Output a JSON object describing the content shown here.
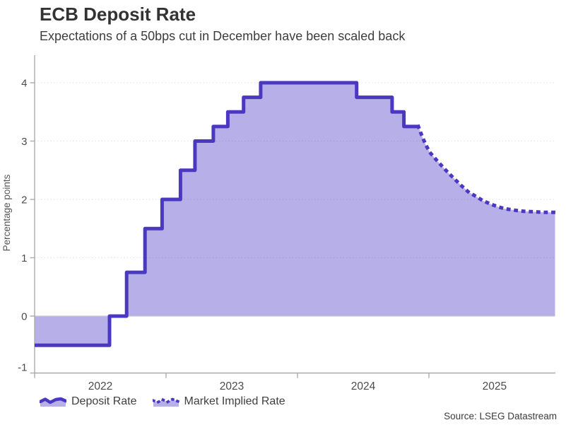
{
  "header": {
    "title": "ECB Deposit Rate",
    "subtitle": "Expectations of a 50bps cut in December have been scaled back"
  },
  "legend": {
    "items": [
      {
        "label": "Deposit Rate",
        "style": "solid"
      },
      {
        "label": "Market Implied Rate",
        "style": "dotted"
      }
    ]
  },
  "source": "Source: LSEG Datastream",
  "colors": {
    "line": "#4A38C0",
    "fill": "rgba(74,56,194,0.40)",
    "fill_flat": "#B7AFE7",
    "axis": "#ABABAB",
    "grid": "#E2E2E2",
    "zero_line": "#C8C8C8",
    "tick_text": "#4B4B4B",
    "ylabel_text": "#565656"
  },
  "chart_data": {
    "type": "area",
    "title": "ECB Deposit Rate",
    "subtitle": "Expectations of a 50bps cut in December have been scaled back",
    "ylabel": "Percentage points",
    "xlabel": "",
    "ylim": [
      -1,
      4.35
    ],
    "xlim": [
      2022.0,
      2025.96
    ],
    "yticks": [
      -1,
      0,
      1,
      2,
      3,
      4
    ],
    "xticks": [
      2022,
      2023,
      2024,
      2025
    ],
    "xtick_labels": [
      "2022",
      "2023",
      "2024",
      "2025"
    ],
    "grid": "horizontal-dotted",
    "legend_position": "bottom-left",
    "baseline": 0,
    "series": [
      {
        "name": "Deposit Rate",
        "type": "step-line",
        "unit": "percentage points",
        "points": [
          [
            2022.0,
            -0.5
          ],
          [
            2022.57,
            0.0
          ],
          [
            2022.7,
            0.75
          ],
          [
            2022.84,
            1.5
          ],
          [
            2022.97,
            2.0
          ],
          [
            2023.11,
            2.5
          ],
          [
            2023.22,
            3.0
          ],
          [
            2023.36,
            3.25
          ],
          [
            2023.47,
            3.5
          ],
          [
            2023.59,
            3.75
          ],
          [
            2023.72,
            4.0
          ],
          [
            2024.45,
            3.75
          ],
          [
            2024.72,
            3.5
          ],
          [
            2024.81,
            3.25
          ],
          [
            2024.92,
            3.25
          ]
        ]
      },
      {
        "name": "Market Implied Rate",
        "type": "dotted-line",
        "unit": "percentage points",
        "points": [
          [
            2024.92,
            3.25
          ],
          [
            2024.95,
            3.07
          ],
          [
            2024.98,
            2.92
          ],
          [
            2025.01,
            2.8
          ],
          [
            2025.06,
            2.67
          ],
          [
            2025.1,
            2.57
          ],
          [
            2025.15,
            2.45
          ],
          [
            2025.2,
            2.34
          ],
          [
            2025.25,
            2.23
          ],
          [
            2025.3,
            2.13
          ],
          [
            2025.36,
            2.05
          ],
          [
            2025.41,
            1.98
          ],
          [
            2025.47,
            1.92
          ],
          [
            2025.53,
            1.87
          ],
          [
            2025.58,
            1.84
          ],
          [
            2025.64,
            1.82
          ],
          [
            2025.7,
            1.8
          ],
          [
            2025.78,
            1.79
          ],
          [
            2025.87,
            1.78
          ],
          [
            2025.96,
            1.78
          ]
        ]
      }
    ]
  }
}
